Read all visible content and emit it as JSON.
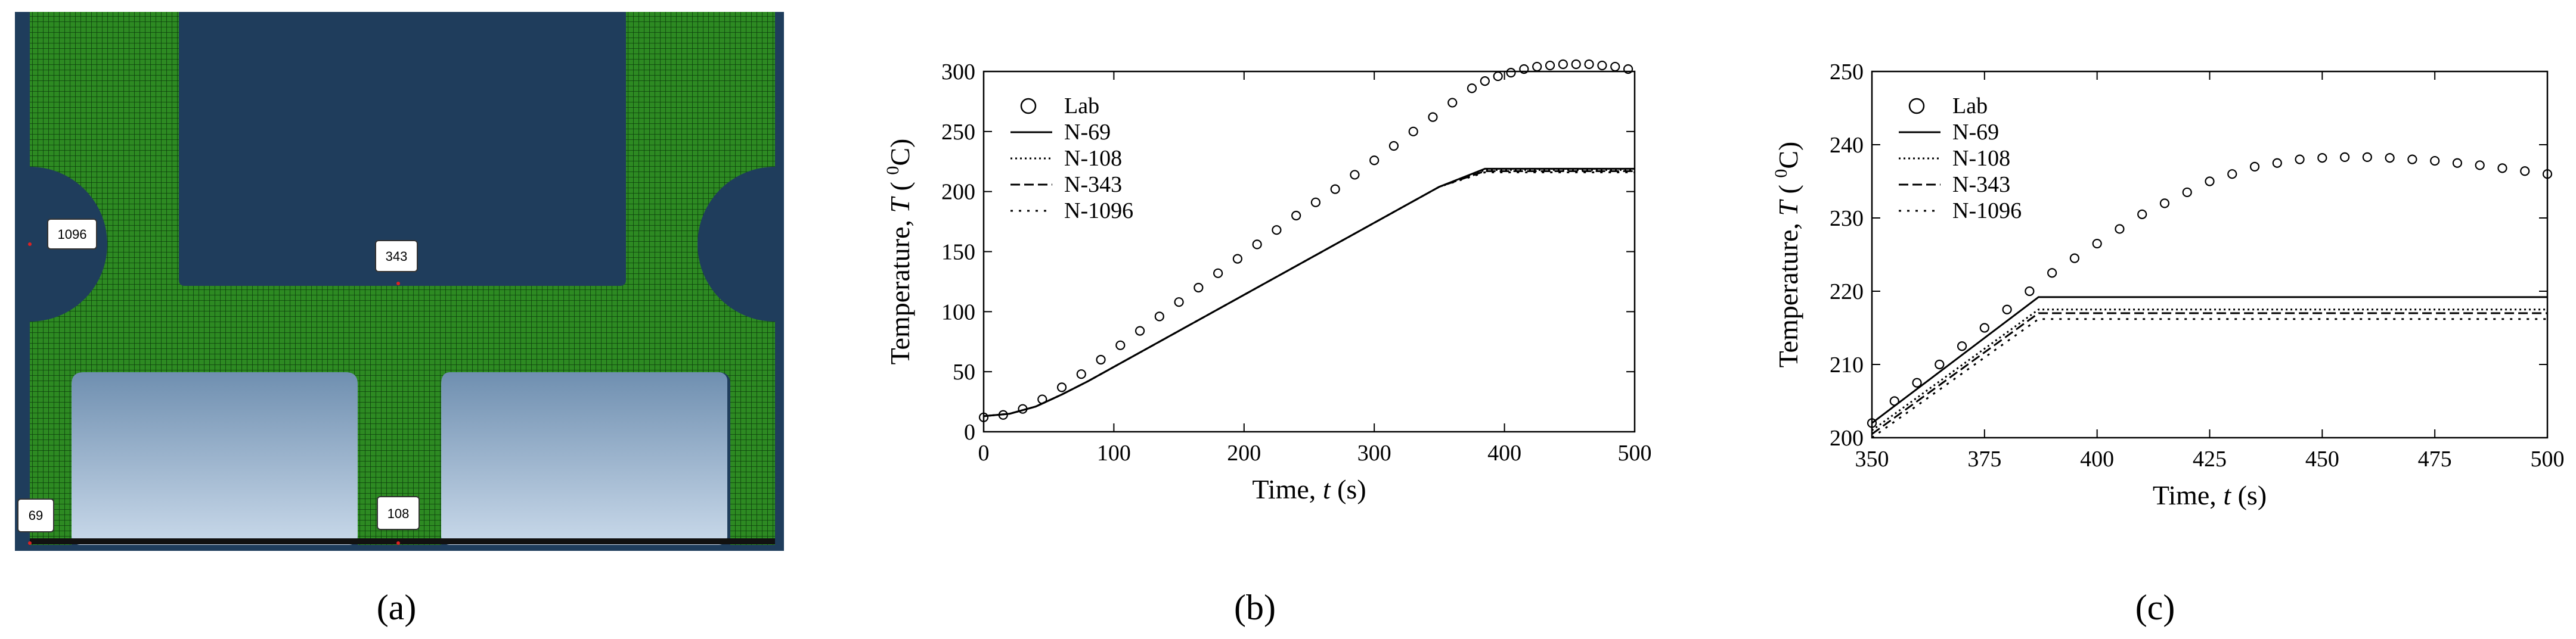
{
  "panel_a": {
    "caption": "(a)",
    "node_labels": [
      "1096",
      "343",
      "69",
      "108"
    ],
    "colors": {
      "background": "#1f3d5c",
      "mesh": "#2d8a22",
      "mesh_line": "#0b3d0b",
      "lower_gap_top": "#6f8fb0",
      "lower_gap_bottom": "#c9d9ea"
    }
  },
  "chart_data": [
    {
      "id": "b",
      "caption": "(b)",
      "type": "line",
      "xlabel": "Time,",
      "xlabel_var": "t",
      "xlabel_unit": "(s)",
      "ylabel": "Temperature,",
      "ylabel_var": "T",
      "ylabel_unit_open": "(",
      "ylabel_unit_sup": "0",
      "ylabel_unit_close": "C)",
      "xlim": [
        0,
        500
      ],
      "ylim": [
        0,
        300
      ],
      "xticks": [
        0,
        100,
        200,
        300,
        400,
        500
      ],
      "yticks": [
        0,
        50,
        100,
        150,
        200,
        250,
        300
      ],
      "legend_position": "top-left",
      "series": [
        {
          "name": "Lab",
          "style": "markers",
          "x": [
            0,
            15,
            30,
            45,
            60,
            75,
            90,
            105,
            120,
            135,
            150,
            165,
            180,
            195,
            210,
            225,
            240,
            255,
            270,
            285,
            300,
            315,
            330,
            345,
            360,
            375,
            385,
            395,
            405,
            415,
            425,
            435,
            445,
            455,
            465,
            475,
            485,
            495
          ],
          "y": [
            12,
            14,
            19,
            27,
            37,
            48,
            60,
            72,
            84,
            96,
            108,
            120,
            132,
            144,
            156,
            168,
            180,
            191,
            202,
            214,
            226,
            238,
            250,
            262,
            274,
            286,
            292,
            296,
            299,
            302,
            304,
            305,
            306,
            306,
            306,
            305,
            304,
            302
          ]
        },
        {
          "name": "N-69",
          "style": "solid",
          "x": [
            0,
            20,
            40,
            60,
            80,
            100,
            150,
            200,
            250,
            300,
            350,
            385,
            500
          ],
          "y": [
            13,
            15,
            21,
            31,
            42,
            54,
            84,
            114,
            144,
            174,
            204,
            219,
            219
          ]
        },
        {
          "name": "N-108",
          "style": "dotted",
          "x": [
            0,
            20,
            40,
            60,
            80,
            100,
            150,
            200,
            250,
            300,
            350,
            385,
            500
          ],
          "y": [
            13,
            15,
            21,
            31,
            42,
            54,
            84,
            114,
            144,
            174,
            204,
            218,
            218
          ]
        },
        {
          "name": "N-343",
          "style": "dashed",
          "x": [
            0,
            20,
            40,
            60,
            80,
            100,
            150,
            200,
            250,
            300,
            350,
            385,
            500
          ],
          "y": [
            13,
            15,
            21,
            31,
            42,
            54,
            84,
            114,
            144,
            174,
            204,
            217,
            217
          ]
        },
        {
          "name": "N-1096",
          "style": "dashdot",
          "x": [
            0,
            20,
            40,
            60,
            80,
            100,
            150,
            200,
            250,
            300,
            350,
            385,
            500
          ],
          "y": [
            13,
            15,
            21,
            31,
            42,
            54,
            84,
            114,
            144,
            174,
            204,
            216,
            216
          ]
        }
      ]
    },
    {
      "id": "c",
      "caption": "(c)",
      "type": "line",
      "xlabel": "Time,",
      "xlabel_var": "t",
      "xlabel_unit": "(s)",
      "ylabel": "Temperature,",
      "ylabel_var": "T",
      "ylabel_unit_open": "(",
      "ylabel_unit_sup": "0",
      "ylabel_unit_close": "C)",
      "xlim": [
        350,
        500
      ],
      "ylim": [
        200,
        250
      ],
      "xticks": [
        350,
        375,
        400,
        425,
        450,
        475,
        500
      ],
      "yticks": [
        200,
        210,
        220,
        230,
        240,
        250
      ],
      "legend_position": "top-left",
      "series": [
        {
          "name": "Lab",
          "style": "markers",
          "x": [
            350,
            355,
            360,
            365,
            370,
            375,
            380,
            385,
            390,
            395,
            400,
            405,
            410,
            415,
            420,
            425,
            430,
            435,
            440,
            445,
            450,
            455,
            460,
            465,
            470,
            475,
            480,
            485,
            490,
            495,
            500
          ],
          "y": [
            202,
            205,
            207.5,
            210,
            212.5,
            215,
            217.5,
            220,
            222.5,
            224.5,
            226.5,
            228.5,
            230.5,
            232,
            233.5,
            235,
            236,
            237,
            237.5,
            238,
            238.2,
            238.3,
            238.3,
            238.2,
            238,
            237.8,
            237.5,
            237.2,
            236.8,
            236.4,
            236
          ]
        },
        {
          "name": "N-69",
          "style": "solid",
          "x": [
            350,
            387,
            500
          ],
          "y": [
            202,
            219.2,
            219.2
          ]
        },
        {
          "name": "N-108",
          "style": "dotted",
          "x": [
            350,
            387,
            500
          ],
          "y": [
            201,
            217.5,
            217.5
          ]
        },
        {
          "name": "N-343",
          "style": "dashed",
          "x": [
            350,
            387,
            500
          ],
          "y": [
            200.5,
            217,
            217
          ]
        },
        {
          "name": "N-1096",
          "style": "dashdot",
          "x": [
            350,
            387,
            500
          ],
          "y": [
            200,
            216.2,
            216.2
          ]
        }
      ]
    }
  ]
}
